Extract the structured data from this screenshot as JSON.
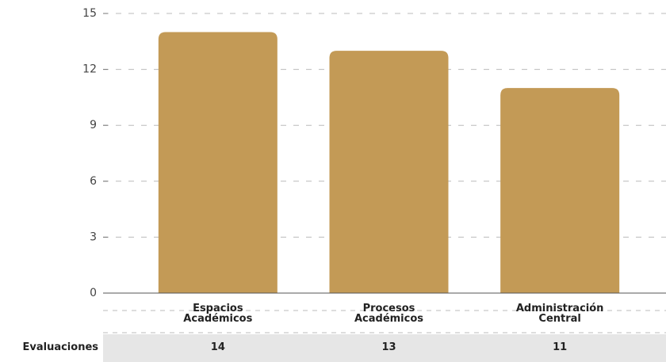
{
  "chart_data": {
    "type": "bar",
    "categories": [
      "Espacios Académicos",
      "Procesos Académicos",
      "Administración Central"
    ],
    "series": [
      {
        "name": "Evaluaciones",
        "color": "#c39a56",
        "values": [
          14,
          13,
          11
        ]
      }
    ],
    "ylim": [
      0,
      15
    ],
    "yticks": [
      0,
      3,
      6,
      9,
      12,
      15
    ],
    "grid": true
  }
}
